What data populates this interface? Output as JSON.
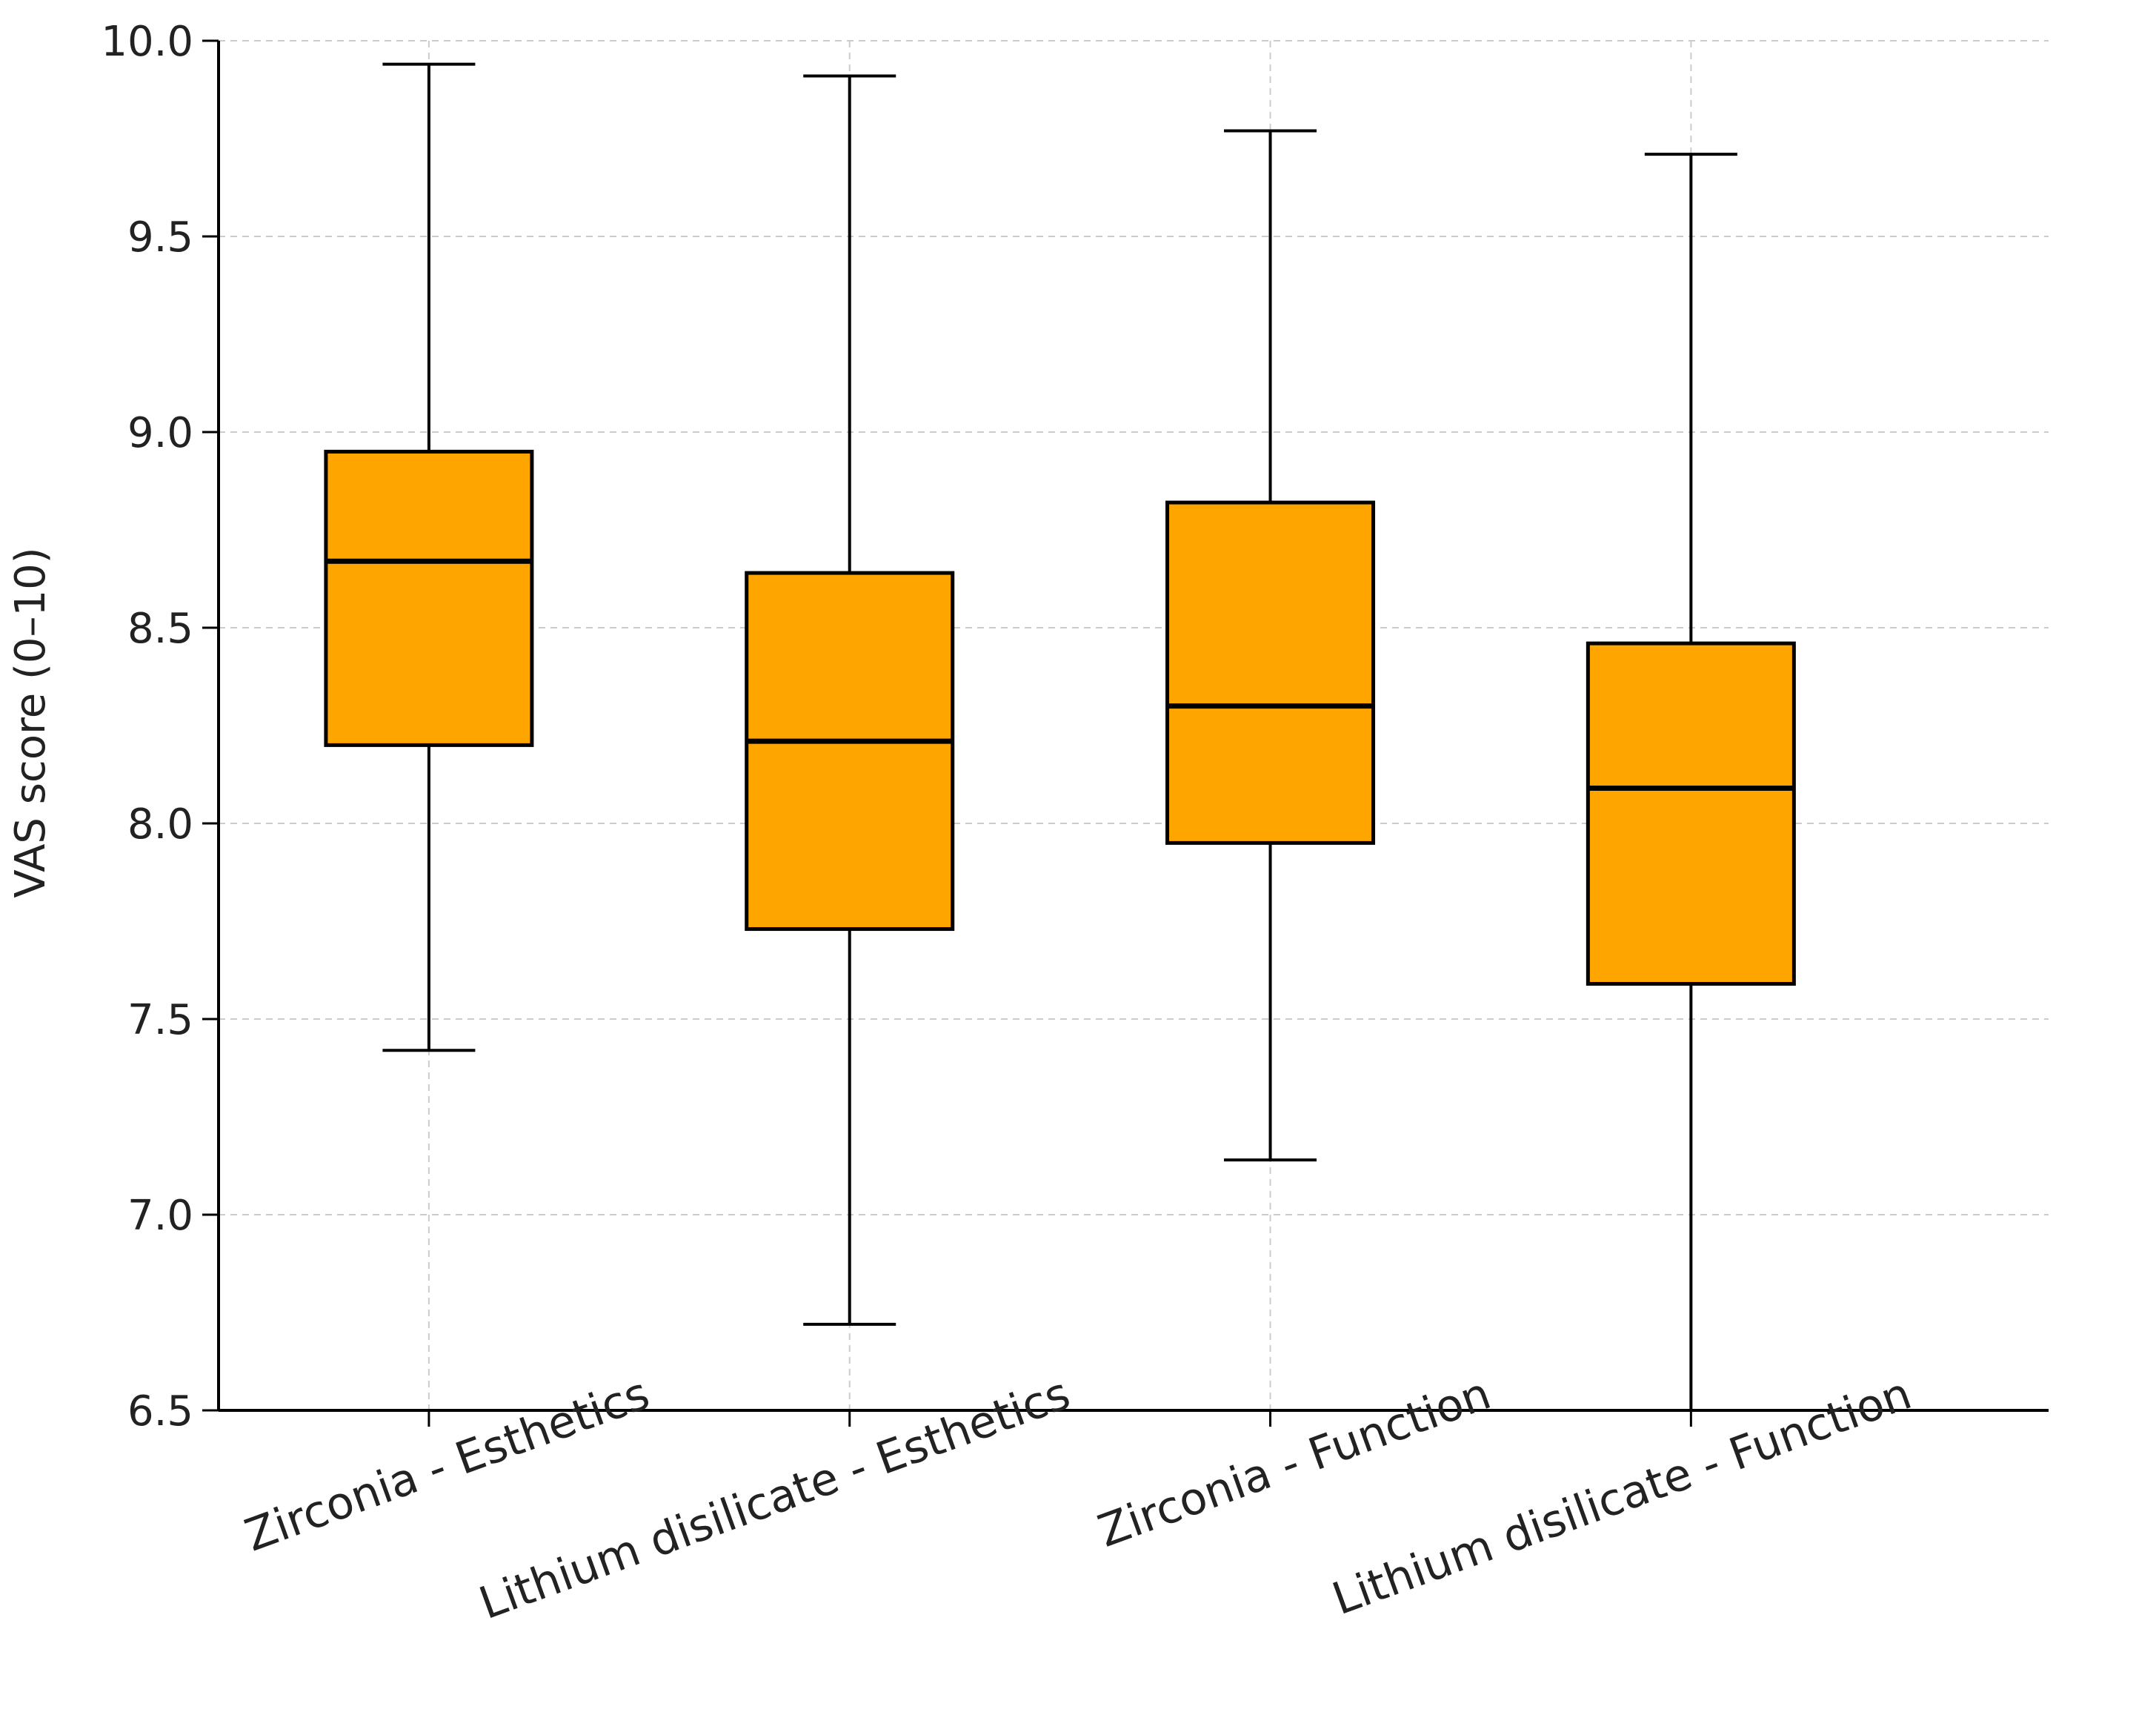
{
  "chart_data": {
    "type": "boxplot",
    "title": "",
    "xlabel": "",
    "ylabel": "VAS score (0–10)",
    "ylim": [
      6.5,
      10.0
    ],
    "yticks": [
      6.5,
      7.0,
      7.5,
      8.0,
      8.5,
      9.0,
      9.5,
      10.0
    ],
    "ytick_labels": [
      "6.5",
      "7.0",
      "7.5",
      "8.0",
      "8.5",
      "9.0",
      "9.5",
      "10.0"
    ],
    "grid": true,
    "box_color": "#FFA500",
    "edge_color": "#000000",
    "grid_color": "#cccccc",
    "categories": [
      "Zirconia - Esthetics",
      "Lithium disilicate - Esthetics",
      "Zirconia - Function",
      "Lithium disilicate - Function"
    ],
    "boxes": [
      {
        "whisker_low": 7.42,
        "q1": 8.2,
        "median": 8.67,
        "q3": 8.95,
        "whisker_high": 9.94
      },
      {
        "whisker_low": 6.72,
        "q1": 7.73,
        "median": 8.21,
        "q3": 8.64,
        "whisker_high": 9.91
      },
      {
        "whisker_low": 7.14,
        "q1": 7.95,
        "median": 8.3,
        "q3": 8.82,
        "whisker_high": 9.77
      },
      {
        "whisker_low": 6.5,
        "q1": 7.59,
        "median": 8.09,
        "q3": 8.46,
        "whisker_high": 9.71
      }
    ]
  }
}
